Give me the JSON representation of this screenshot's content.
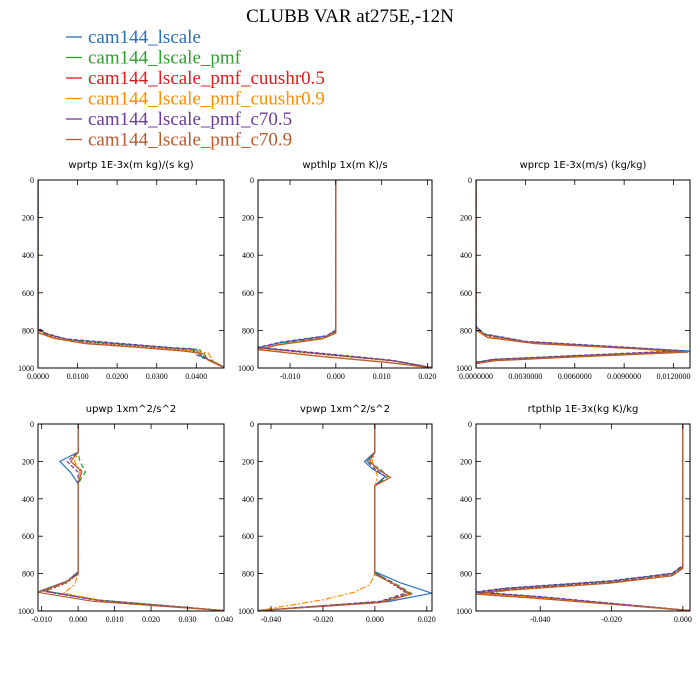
{
  "title": "CLUBB VAR at275E,-12N",
  "legend": [
    {
      "name": "cam144_lscale",
      "color": "#2b6fb8",
      "dash": ""
    },
    {
      "name": "cam144_lscale_pmf",
      "color": "#2ea02e",
      "dash": "5,3"
    },
    {
      "name": "cam144_lscale_pmf_cuushr0.5",
      "color": "#e31a1c",
      "dash": "2,2"
    },
    {
      "name": "cam144_lscale_pmf_cuushr0.9",
      "color": "#ff8c00",
      "dash": "6,2,2,2"
    },
    {
      "name": "cam144_lscale_pmf_c70.5",
      "color": "#6a3d9a",
      "dash": "4,2"
    },
    {
      "name": "cam144_lscale_pmf_c70.9",
      "color": "#b85a2e",
      "dash": ""
    }
  ],
  "chart_data": [
    {
      "type": "line",
      "title": "wprtp  1E-3x(m kg)/(s kg)",
      "xlim": [
        0,
        0.047
      ],
      "ylim": [
        0,
        1000
      ],
      "y_inverted": true,
      "xticks": [
        0,
        0.01,
        0.02,
        0.03,
        0.04
      ],
      "xticklabels": [
        "0.0000",
        "0.0100",
        "0.0200",
        "0.0300",
        "0.0400"
      ],
      "yticks": [
        0,
        200,
        400,
        600,
        800,
        1000
      ],
      "yticklabels": [
        "0",
        "200",
        "400",
        "600",
        "800",
        "1000"
      ],
      "series": [
        {
          "x": [
            0,
            0,
            0.002,
            0.008,
            0.02,
            0.035,
            0.04,
            0.041,
            0.047
          ],
          "y": [
            0,
            790,
            820,
            850,
            870,
            895,
            900,
            935,
            995
          ]
        },
        {
          "x": [
            0,
            0,
            0.003,
            0.009,
            0.021,
            0.036,
            0.041,
            0.042,
            0.047
          ],
          "y": [
            0,
            795,
            825,
            855,
            875,
            898,
            905,
            940,
            995
          ]
        },
        {
          "x": [
            0,
            0,
            0.003,
            0.01,
            0.022,
            0.035,
            0.04,
            0.042,
            0.047
          ],
          "y": [
            0,
            800,
            830,
            860,
            880,
            900,
            910,
            945,
            996
          ]
        },
        {
          "x": [
            0,
            0,
            0.004,
            0.012,
            0.024,
            0.038,
            0.043,
            0.044,
            0.047
          ],
          "y": [
            0,
            810,
            840,
            868,
            888,
            908,
            920,
            955,
            998
          ]
        },
        {
          "x": [
            0,
            0,
            0.002,
            0.007,
            0.019,
            0.034,
            0.039,
            0.04,
            0.047
          ],
          "y": [
            0,
            785,
            815,
            845,
            866,
            892,
            898,
            930,
            994
          ]
        },
        {
          "x": [
            0,
            0,
            0.004,
            0.012,
            0.025,
            0.037,
            0.042,
            0.043,
            0.047
          ],
          "y": [
            0,
            812,
            842,
            870,
            890,
            910,
            925,
            958,
            998
          ]
        }
      ]
    },
    {
      "type": "line",
      "title": "wpthlp  1x(m K)/s",
      "xlim": [
        -0.017,
        0.021
      ],
      "ylim": [
        0,
        1000
      ],
      "y_inverted": true,
      "xticks": [
        -0.01,
        0,
        0.01,
        0.02
      ],
      "xticklabels": [
        "-0.010",
        "0.000",
        "0.010",
        "0.020"
      ],
      "yticks": [
        0,
        200,
        400,
        600,
        800,
        1000
      ],
      "yticklabels": [
        "0",
        "200",
        "400",
        "600",
        "800",
        "1000"
      ],
      "series": [
        {
          "x": [
            0,
            0,
            -0.002,
            -0.012,
            -0.017,
            -0.003,
            0.012,
            0.021
          ],
          "y": [
            0,
            800,
            830,
            865,
            892,
            925,
            960,
            998
          ]
        },
        {
          "x": [
            0,
            0,
            -0.002,
            -0.011,
            -0.016,
            -0.002,
            0.013,
            0.021
          ],
          "y": [
            0,
            805,
            835,
            868,
            895,
            928,
            962,
            998
          ]
        },
        {
          "x": [
            0,
            0,
            -0.002,
            -0.011,
            -0.016,
            -0.002,
            0.013,
            0.021
          ],
          "y": [
            0,
            805,
            836,
            870,
            896,
            930,
            963,
            998
          ]
        },
        {
          "x": [
            0,
            0,
            -0.003,
            -0.012,
            -0.017,
            -0.004,
            0.011,
            0.021
          ],
          "y": [
            0,
            812,
            842,
            875,
            900,
            935,
            968,
            999
          ]
        },
        {
          "x": [
            0,
            0,
            -0.002,
            -0.012,
            -0.017,
            -0.003,
            0.012,
            0.021
          ],
          "y": [
            0,
            798,
            828,
            862,
            890,
            922,
            958,
            998
          ]
        },
        {
          "x": [
            0,
            0,
            -0.003,
            -0.013,
            -0.017,
            -0.004,
            0.011,
            0.021
          ],
          "y": [
            0,
            815,
            845,
            878,
            902,
            937,
            970,
            999
          ]
        }
      ]
    },
    {
      "type": "line",
      "title": "wprcp  1E-3x(m/s) (kg/kg)",
      "xlim": [
        0,
        0.013
      ],
      "ylim": [
        0,
        1000
      ],
      "y_inverted": true,
      "xticks": [
        0,
        0.003,
        0.006,
        0.009,
        0.012
      ],
      "xticklabels": [
        "0.0000000",
        "0.0030000",
        "0.0060000",
        "0.0090000",
        "0.0120000"
      ],
      "yticks": [
        0,
        200,
        400,
        600,
        800,
        1000
      ],
      "yticklabels": [
        "0",
        "200",
        "400",
        "600",
        "800",
        "1000"
      ],
      "series": [
        {
          "x": [
            0,
            0,
            0.0005,
            0.003,
            0.009,
            0.013,
            0.006,
            0.001,
            0,
            0
          ],
          "y": [
            0,
            780,
            820,
            860,
            890,
            910,
            935,
            955,
            970,
            1000
          ]
        },
        {
          "x": [
            0,
            0,
            0.0006,
            0.0032,
            0.0092,
            0.0125,
            0.006,
            0.001,
            0,
            0
          ],
          "y": [
            0,
            785,
            825,
            862,
            892,
            912,
            936,
            956,
            972,
            1000
          ]
        },
        {
          "x": [
            0,
            0,
            0.0006,
            0.0033,
            0.0093,
            0.0126,
            0.0058,
            0.001,
            0,
            0
          ],
          "y": [
            0,
            788,
            828,
            864,
            894,
            913,
            937,
            957,
            973,
            1000
          ]
        },
        {
          "x": [
            0,
            0,
            0.0007,
            0.0036,
            0.0096,
            0.0128,
            0.006,
            0.0012,
            0,
            0
          ],
          "y": [
            0,
            795,
            835,
            868,
            897,
            915,
            940,
            960,
            976,
            1000
          ]
        },
        {
          "x": [
            0,
            0,
            0.0005,
            0.003,
            0.0088,
            0.0125,
            0.0062,
            0.0012,
            0,
            0
          ],
          "y": [
            0,
            778,
            818,
            858,
            888,
            908,
            933,
            953,
            969,
            1000
          ]
        },
        {
          "x": [
            0,
            0,
            0.0007,
            0.0036,
            0.0097,
            0.0129,
            0.0061,
            0.0012,
            0,
            0
          ],
          "y": [
            0,
            798,
            838,
            870,
            898,
            916,
            941,
            961,
            977,
            1000
          ]
        }
      ]
    },
    {
      "type": "line",
      "title": "upwp  1xm^2/s^2",
      "xlim": [
        -0.011,
        0.04
      ],
      "ylim": [
        0,
        1000
      ],
      "y_inverted": true,
      "xticks": [
        -0.01,
        0,
        0.01,
        0.02,
        0.03,
        0.04
      ],
      "xticklabels": [
        "-0.010",
        "0.000",
        "0.010",
        "0.020",
        "0.030",
        "0.040"
      ],
      "yticks": [
        0,
        200,
        400,
        600,
        800,
        1000
      ],
      "yticklabels": [
        "0",
        "200",
        "400",
        "600",
        "800",
        "1000"
      ],
      "series": [
        {
          "x": [
            0,
            0,
            -0.005,
            -0.002,
            0,
            0,
            -0.003,
            -0.01,
            0.005,
            0.04
          ],
          "y": [
            0,
            150,
            200,
            260,
            320,
            790,
            840,
            890,
            940,
            998
          ]
        },
        {
          "x": [
            0,
            0,
            0.0005,
            0.002,
            0,
            0,
            -0.003,
            -0.009,
            0.006,
            0.04
          ],
          "y": [
            0,
            150,
            200,
            255,
            320,
            795,
            845,
            893,
            943,
            998
          ]
        },
        {
          "x": [
            0,
            0,
            -0.002,
            0.001,
            0,
            0,
            -0.003,
            -0.009,
            0.006,
            0.04
          ],
          "y": [
            0,
            150,
            200,
            250,
            320,
            800,
            848,
            895,
            945,
            998
          ]
        },
        {
          "x": [
            0,
            0,
            -0.001,
            0.0005,
            0,
            0,
            -0.001,
            -0.004,
            0.008,
            0.04
          ],
          "y": [
            0,
            150,
            200,
            250,
            320,
            800,
            860,
            905,
            950,
            998
          ]
        },
        {
          "x": [
            0,
            0,
            -0.003,
            0,
            0,
            0,
            -0.003,
            -0.01,
            0.005,
            0.04
          ],
          "y": [
            0,
            150,
            200,
            258,
            320,
            792,
            842,
            892,
            942,
            998
          ]
        },
        {
          "x": [
            0,
            0,
            -0.002,
            0.001,
            0,
            0,
            -0.004,
            -0.011,
            0.004,
            0.04
          ],
          "y": [
            0,
            150,
            200,
            255,
            320,
            805,
            850,
            900,
            948,
            998
          ]
        }
      ]
    },
    {
      "type": "line",
      "title": "vpwp  1xm^2/s^2",
      "xlim": [
        -0.045,
        0.022
      ],
      "ylim": [
        0,
        1000
      ],
      "y_inverted": true,
      "xticks": [
        -0.04,
        -0.02,
        0
      ],
      "xticklabels": [
        "-0.040",
        "-0.020",
        "0.000"
      ],
      "extra_xticks": [
        0.02
      ],
      "extra_xticklabels": [
        "0.020"
      ],
      "yticks": [
        0,
        200,
        400,
        600,
        800,
        1000
      ],
      "yticklabels": [
        "0",
        "200",
        "400",
        "600",
        "800",
        "1000"
      ],
      "series": [
        {
          "x": [
            0,
            0,
            -0.004,
            -0.001,
            0.004,
            0,
            0,
            0.01,
            0.022,
            0.005,
            -0.045
          ],
          "y": [
            0,
            150,
            200,
            240,
            280,
            330,
            790,
            850,
            905,
            950,
            998
          ]
        },
        {
          "x": [
            0,
            0,
            -0.003,
            0.002,
            0.005,
            0,
            0,
            0.008,
            0.014,
            0.002,
            -0.045
          ],
          "y": [
            0,
            150,
            200,
            240,
            280,
            330,
            795,
            855,
            905,
            950,
            998
          ]
        },
        {
          "x": [
            0,
            0,
            -0.002,
            0.001,
            0.006,
            0,
            0,
            0.007,
            0.013,
            0.002,
            -0.045
          ],
          "y": [
            0,
            150,
            200,
            240,
            285,
            330,
            800,
            858,
            908,
            952,
            998
          ]
        },
        {
          "x": [
            0,
            0,
            -0.001,
            0,
            0.001,
            0,
            0,
            -0.002,
            -0.008,
            -0.02,
            -0.045
          ],
          "y": [
            0,
            150,
            200,
            240,
            280,
            330,
            800,
            860,
            900,
            940,
            998
          ]
        },
        {
          "x": [
            0,
            0,
            -0.003,
            0,
            0.004,
            0,
            0,
            0.007,
            0.012,
            0.002,
            -0.045
          ],
          "y": [
            0,
            150,
            200,
            240,
            282,
            330,
            795,
            852,
            903,
            948,
            998
          ]
        },
        {
          "x": [
            0,
            0,
            -0.002,
            0.001,
            0.006,
            0,
            0,
            0.008,
            0.014,
            0.002,
            -0.045
          ],
          "y": [
            0,
            150,
            200,
            240,
            286,
            330,
            805,
            860,
            910,
            955,
            998
          ]
        }
      ]
    },
    {
      "type": "line",
      "title": "rtpthlp  1E-3x(kg K)/kg",
      "xlim": [
        -0.058,
        0.002
      ],
      "ylim": [
        0,
        1000
      ],
      "y_inverted": true,
      "xticks": [
        -0.04,
        -0.02,
        0
      ],
      "xticklabels": [
        "-0.040",
        "-0.020",
        "0.000"
      ],
      "yticks": [
        0,
        200,
        400,
        600,
        800,
        1000
      ],
      "yticklabels": [
        "0",
        "200",
        "400",
        "600",
        "800",
        "1000"
      ],
      "series": [
        {
          "x": [
            0,
            0,
            -0.003,
            -0.02,
            -0.05,
            -0.058,
            -0.04,
            0.002
          ],
          "y": [
            0,
            760,
            800,
            840,
            880,
            900,
            925,
            998
          ]
        },
        {
          "x": [
            0,
            0,
            -0.003,
            -0.02,
            -0.049,
            -0.057,
            -0.04,
            0.002
          ],
          "y": [
            0,
            765,
            805,
            845,
            883,
            903,
            928,
            998
          ]
        },
        {
          "x": [
            0,
            0,
            -0.003,
            -0.02,
            -0.05,
            -0.057,
            -0.04,
            0.002
          ],
          "y": [
            0,
            765,
            806,
            846,
            884,
            904,
            929,
            998
          ]
        },
        {
          "x": [
            0,
            0,
            -0.003,
            -0.02,
            -0.048,
            -0.056,
            -0.038,
            0.002
          ],
          "y": [
            0,
            770,
            810,
            850,
            888,
            908,
            932,
            998
          ]
        },
        {
          "x": [
            0,
            0,
            -0.003,
            -0.02,
            -0.05,
            -0.058,
            -0.04,
            0.002
          ],
          "y": [
            0,
            755,
            798,
            838,
            878,
            898,
            923,
            998
          ]
        },
        {
          "x": [
            0,
            0,
            -0.003,
            -0.021,
            -0.05,
            -0.058,
            -0.04,
            0.002
          ],
          "y": [
            0,
            772,
            812,
            852,
            890,
            910,
            934,
            998
          ]
        }
      ]
    }
  ]
}
